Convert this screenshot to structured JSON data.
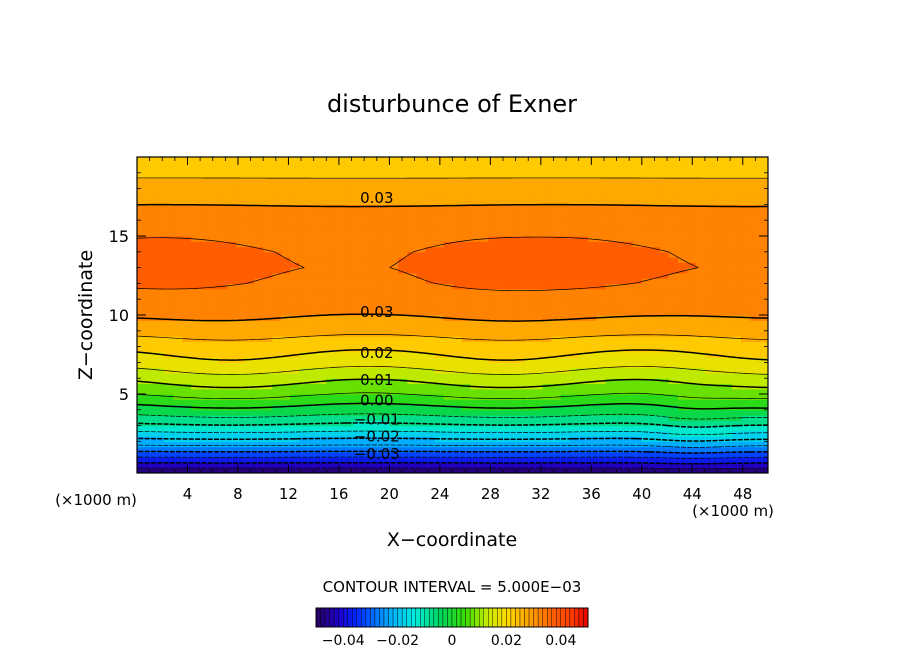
{
  "chart_data": {
    "type": "heatmap",
    "title": "disturbunce of Exner",
    "xlabel": "X−coordinate",
    "ylabel": "Z−coordinate",
    "x_unit": "(×1000 m)",
    "z_unit": "(×1000 m)",
    "xlim": [
      0,
      50
    ],
    "ylim": [
      0,
      20
    ],
    "x_ticks": [
      4,
      8,
      12,
      16,
      20,
      24,
      28,
      32,
      36,
      40,
      44,
      48
    ],
    "y_ticks": [
      5,
      10,
      15
    ],
    "contour_interval_text": "CONTOUR INTERVAL = 5.000E−03",
    "contour_interval": 0.005,
    "value_range": [
      -0.05,
      0.05
    ],
    "colorbar_ticks": [
      "−0.04",
      "−0.02",
      "0",
      "0.02",
      "0.04"
    ],
    "colorbar_tick_values": [
      -0.04,
      -0.02,
      0,
      0.02,
      0.04
    ],
    "profile_z": [
      0,
      0.5,
      1,
      1.5,
      2,
      2.5,
      3,
      3.5,
      4,
      4.5,
      5,
      5.5,
      6,
      6.5,
      7,
      7.5,
      8,
      8.5,
      9,
      9.5,
      10,
      10.5,
      11,
      12,
      13,
      14,
      15,
      16,
      17,
      18,
      19,
      20
    ],
    "profile_values": [
      -0.05,
      -0.042,
      -0.035,
      -0.028,
      -0.022,
      -0.016,
      -0.011,
      -0.006,
      -0.002,
      0.002,
      0.006,
      0.009,
      0.012,
      0.015,
      0.018,
      0.02,
      0.022,
      0.0245,
      0.027,
      0.029,
      0.0305,
      0.032,
      0.0333,
      0.0348,
      0.0356,
      0.0352,
      0.0343,
      0.0325,
      0.0298,
      0.027,
      0.024,
      0.021
    ],
    "contour_labels": [
      {
        "text": "0.03",
        "x": 19,
        "z": 17.4
      },
      {
        "text": "0.03",
        "x": 19,
        "z": 10.2
      },
      {
        "text": "0.02",
        "x": 19,
        "z": 7.6
      },
      {
        "text": "0.01",
        "x": 19,
        "z": 5.9
      },
      {
        "text": "0.00",
        "x": 19,
        "z": 4.6
      },
      {
        "text": "−0.01",
        "x": 19,
        "z": 3.4
      },
      {
        "text": "−0.02",
        "x": 19,
        "z": 2.3
      },
      {
        "text": "−0.03",
        "x": 19,
        "z": 1.2
      }
    ]
  }
}
